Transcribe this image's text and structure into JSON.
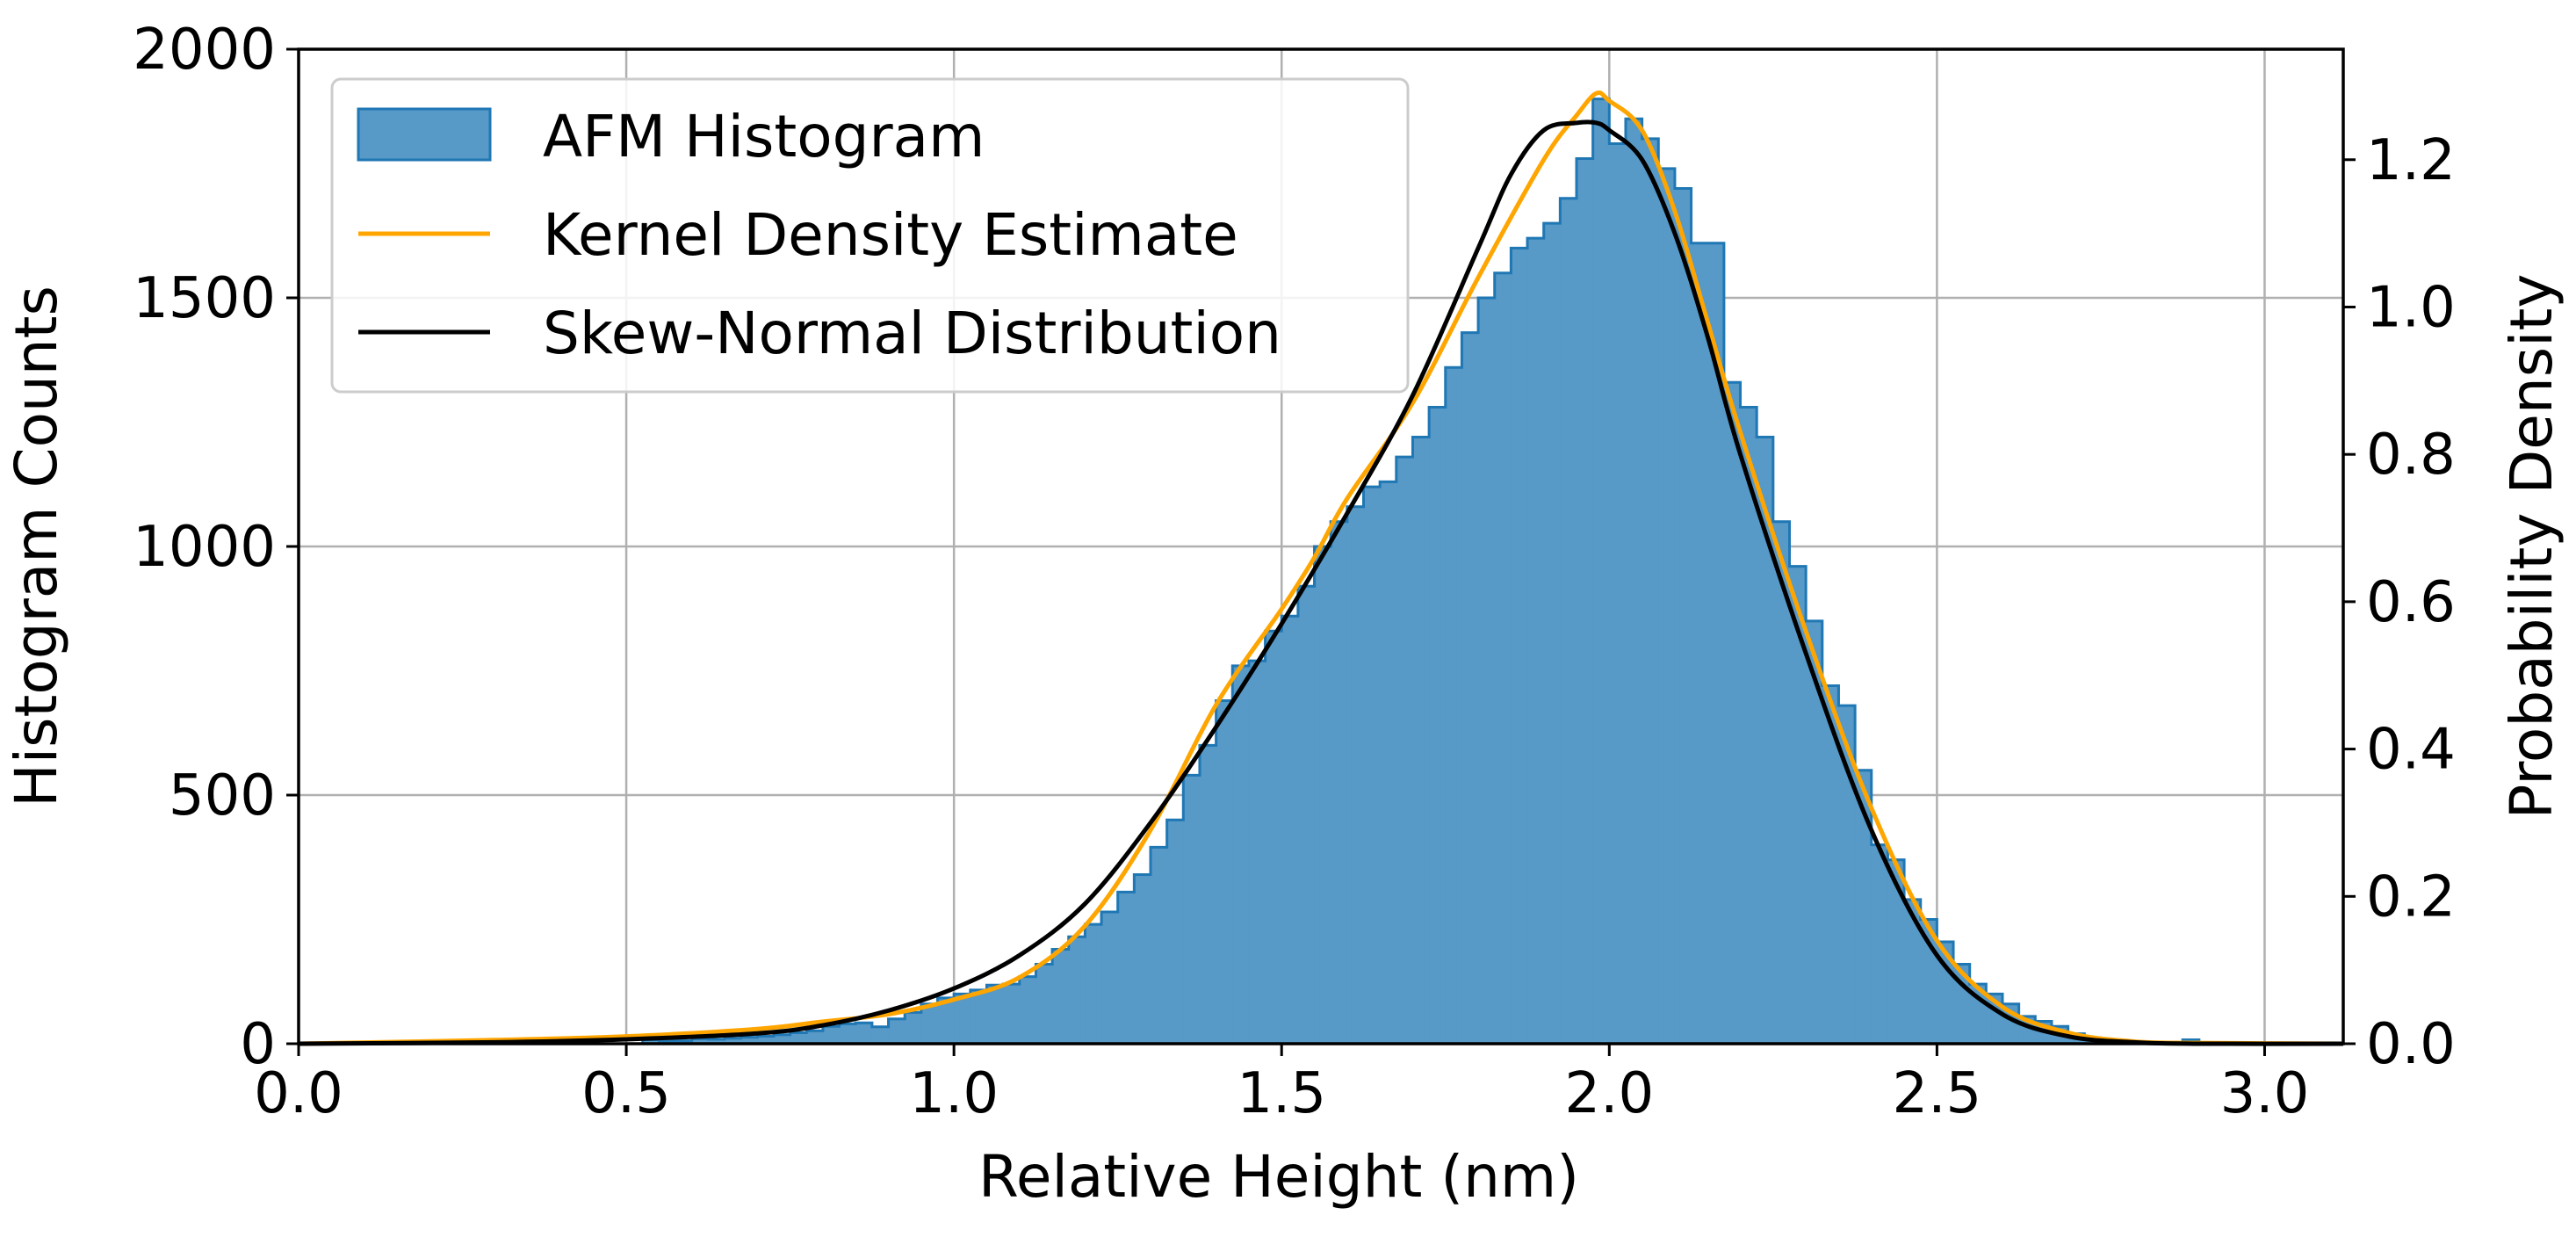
{
  "chart_data": {
    "type": "bar",
    "xlabel": "Relative Height (nm)",
    "ylabel": "Histogram Counts",
    "y2label": "Probability Density",
    "xlim": [
      0.0,
      3.12
    ],
    "ylim": [
      0,
      2000
    ],
    "y2lim": [
      0,
      1.35
    ],
    "grid": true,
    "legend_position": "top-left",
    "x_ticks": [
      {
        "value": 0.0,
        "label": "0.0"
      },
      {
        "value": 0.5,
        "label": "0.5"
      },
      {
        "value": 1.0,
        "label": "1.0"
      },
      {
        "value": 1.5,
        "label": "1.5"
      },
      {
        "value": 2.0,
        "label": "2.0"
      },
      {
        "value": 2.5,
        "label": "2.5"
      },
      {
        "value": 3.0,
        "label": "3.0"
      }
    ],
    "y_ticks": [
      {
        "value": 0,
        "label": "0"
      },
      {
        "value": 500,
        "label": "500"
      },
      {
        "value": 1000,
        "label": "1000"
      },
      {
        "value": 1500,
        "label": "1500"
      },
      {
        "value": 2000,
        "label": "2000"
      }
    ],
    "y2_ticks": [
      {
        "value": 0.0,
        "label": "0.0"
      },
      {
        "value": 0.2,
        "label": "0.2"
      },
      {
        "value": 0.4,
        "label": "0.4"
      },
      {
        "value": 0.6,
        "label": "0.6"
      },
      {
        "value": 0.8,
        "label": "0.8"
      },
      {
        "value": 1.0,
        "label": "1.0"
      },
      {
        "value": 1.2,
        "label": "1.2"
      }
    ],
    "histogram": {
      "name": "AFM Histogram",
      "color": "#5799c7",
      "edge_color": "#1f77b4",
      "bin_width": 0.025,
      "bins": [
        [
          0.0,
          0
        ],
        [
          0.025,
          0
        ],
        [
          0.05,
          0
        ],
        [
          0.075,
          0
        ],
        [
          0.1,
          0
        ],
        [
          0.125,
          0
        ],
        [
          0.15,
          0
        ],
        [
          0.175,
          0
        ],
        [
          0.2,
          0
        ],
        [
          0.225,
          0
        ],
        [
          0.25,
          0
        ],
        [
          0.275,
          0
        ],
        [
          0.3,
          0
        ],
        [
          0.325,
          0
        ],
        [
          0.35,
          0
        ],
        [
          0.375,
          0
        ],
        [
          0.4,
          0
        ],
        [
          0.425,
          8
        ],
        [
          0.45,
          0
        ],
        [
          0.475,
          0
        ],
        [
          0.5,
          0
        ],
        [
          0.525,
          8
        ],
        [
          0.55,
          6
        ],
        [
          0.575,
          6
        ],
        [
          0.6,
          10
        ],
        [
          0.625,
          9
        ],
        [
          0.65,
          11
        ],
        [
          0.675,
          13
        ],
        [
          0.7,
          15
        ],
        [
          0.725,
          18
        ],
        [
          0.75,
          22
        ],
        [
          0.775,
          26
        ],
        [
          0.8,
          35
        ],
        [
          0.825,
          40
        ],
        [
          0.85,
          42
        ],
        [
          0.875,
          34
        ],
        [
          0.9,
          50
        ],
        [
          0.925,
          63
        ],
        [
          0.95,
          80
        ],
        [
          0.975,
          92
        ],
        [
          1.0,
          100
        ],
        [
          1.025,
          108
        ],
        [
          1.05,
          118
        ],
        [
          1.075,
          120
        ],
        [
          1.1,
          135
        ],
        [
          1.125,
          160
        ],
        [
          1.15,
          190
        ],
        [
          1.175,
          215
        ],
        [
          1.2,
          240
        ],
        [
          1.225,
          265
        ],
        [
          1.25,
          305
        ],
        [
          1.275,
          340
        ],
        [
          1.3,
          395
        ],
        [
          1.325,
          450
        ],
        [
          1.35,
          540
        ],
        [
          1.375,
          600
        ],
        [
          1.4,
          690
        ],
        [
          1.425,
          760
        ],
        [
          1.45,
          770
        ],
        [
          1.475,
          830
        ],
        [
          1.5,
          860
        ],
        [
          1.525,
          920
        ],
        [
          1.55,
          1000
        ],
        [
          1.575,
          1050
        ],
        [
          1.6,
          1080
        ],
        [
          1.625,
          1120
        ],
        [
          1.65,
          1130
        ],
        [
          1.675,
          1180
        ],
        [
          1.7,
          1220
        ],
        [
          1.725,
          1280
        ],
        [
          1.75,
          1360
        ],
        [
          1.775,
          1430
        ],
        [
          1.8,
          1500
        ],
        [
          1.825,
          1550
        ],
        [
          1.85,
          1600
        ],
        [
          1.875,
          1620
        ],
        [
          1.9,
          1650
        ],
        [
          1.925,
          1700
        ],
        [
          1.95,
          1780
        ],
        [
          1.975,
          1900
        ],
        [
          2.0,
          1810
        ],
        [
          2.025,
          1860
        ],
        [
          2.05,
          1820
        ],
        [
          2.075,
          1760
        ],
        [
          2.1,
          1720
        ],
        [
          2.125,
          1610
        ],
        [
          2.15,
          1610
        ],
        [
          2.175,
          1330
        ],
        [
          2.2,
          1280
        ],
        [
          2.225,
          1220
        ],
        [
          2.25,
          1050
        ],
        [
          2.275,
          960
        ],
        [
          2.3,
          850
        ],
        [
          2.325,
          720
        ],
        [
          2.35,
          680
        ],
        [
          2.375,
          550
        ],
        [
          2.4,
          400
        ],
        [
          2.425,
          370
        ],
        [
          2.45,
          290
        ],
        [
          2.475,
          250
        ],
        [
          2.5,
          205
        ],
        [
          2.525,
          160
        ],
        [
          2.55,
          120
        ],
        [
          2.575,
          100
        ],
        [
          2.6,
          80
        ],
        [
          2.625,
          55
        ],
        [
          2.65,
          45
        ],
        [
          2.675,
          35
        ],
        [
          2.7,
          20
        ],
        [
          2.725,
          12
        ],
        [
          2.75,
          8
        ],
        [
          2.775,
          5
        ],
        [
          2.8,
          3
        ],
        [
          2.825,
          2
        ],
        [
          2.85,
          2
        ],
        [
          2.875,
          8
        ],
        [
          2.9,
          1
        ],
        [
          2.925,
          0
        ],
        [
          2.95,
          0
        ],
        [
          2.975,
          0
        ],
        [
          3.0,
          0
        ],
        [
          3.025,
          0
        ],
        [
          3.05,
          0
        ],
        [
          3.075,
          0
        ]
      ]
    },
    "series": [
      {
        "name": "Kernel Density Estimate",
        "color": "#ffa500",
        "axis": "y2",
        "x": [
          0.0,
          0.3,
          0.5,
          0.7,
          0.8,
          0.9,
          1.0,
          1.1,
          1.2,
          1.3,
          1.4,
          1.5,
          1.55,
          1.6,
          1.7,
          1.8,
          1.9,
          1.95,
          1.98,
          2.0,
          2.05,
          2.1,
          2.15,
          2.2,
          2.3,
          2.4,
          2.5,
          2.6,
          2.7,
          2.8,
          2.9,
          3.12
        ],
        "values": [
          0.0,
          0.005,
          0.01,
          0.02,
          0.03,
          0.04,
          0.06,
          0.09,
          0.16,
          0.29,
          0.46,
          0.59,
          0.66,
          0.74,
          0.87,
          1.04,
          1.2,
          1.26,
          1.29,
          1.28,
          1.24,
          1.13,
          0.98,
          0.83,
          0.56,
          0.32,
          0.14,
          0.05,
          0.015,
          0.003,
          0.001,
          0.0
        ]
      },
      {
        "name": "Skew-Normal Distribution",
        "color": "#000000",
        "axis": "y2",
        "x": [
          0.0,
          0.3,
          0.5,
          0.7,
          0.8,
          0.9,
          1.0,
          1.1,
          1.2,
          1.3,
          1.4,
          1.5,
          1.6,
          1.7,
          1.8,
          1.85,
          1.9,
          1.95,
          1.98,
          2.0,
          2.05,
          2.1,
          2.15,
          2.2,
          2.3,
          2.4,
          2.5,
          2.6,
          2.7,
          2.8,
          2.9,
          3.12
        ],
        "values": [
          0.0,
          0.002,
          0.006,
          0.014,
          0.025,
          0.045,
          0.075,
          0.12,
          0.19,
          0.3,
          0.43,
          0.57,
          0.72,
          0.88,
          1.08,
          1.18,
          1.24,
          1.25,
          1.25,
          1.24,
          1.2,
          1.1,
          0.96,
          0.8,
          0.53,
          0.29,
          0.12,
          0.04,
          0.01,
          0.002,
          0.0,
          0.0
        ]
      }
    ]
  }
}
